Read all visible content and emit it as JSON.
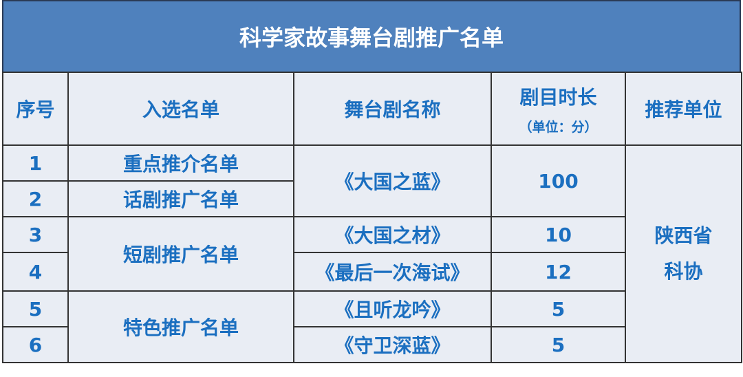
{
  "title": "科学家故事舞台剧推广名单",
  "headers": {
    "index": "序号",
    "list": "入选名单",
    "play": "舞台剧名称",
    "duration": "剧目时长",
    "duration_unit": "（单位：分）",
    "recommender": "推荐单位"
  },
  "rows": [
    {
      "index": "1",
      "list": "重点推介名单",
      "play": "《大国之蓝》",
      "duration": "100"
    },
    {
      "index": "2",
      "list": "话剧推广名单"
    },
    {
      "index": "3",
      "list": "短剧推广名单",
      "play": "《大国之材》",
      "duration": "10"
    },
    {
      "index": "4",
      "play": "《最后一次海试》",
      "duration": "12"
    },
    {
      "index": "5",
      "list": "特色推广名单",
      "play": "《且听龙吟》",
      "duration": "5"
    },
    {
      "index": "6",
      "play": "《守卫深蓝》",
      "duration": "5"
    }
  ],
  "recommender": "陕西省\n科协",
  "colors": {
    "title_bg": "#4f81bd",
    "cell_bg": "#e9edf4",
    "text": "#1b6fc0"
  }
}
